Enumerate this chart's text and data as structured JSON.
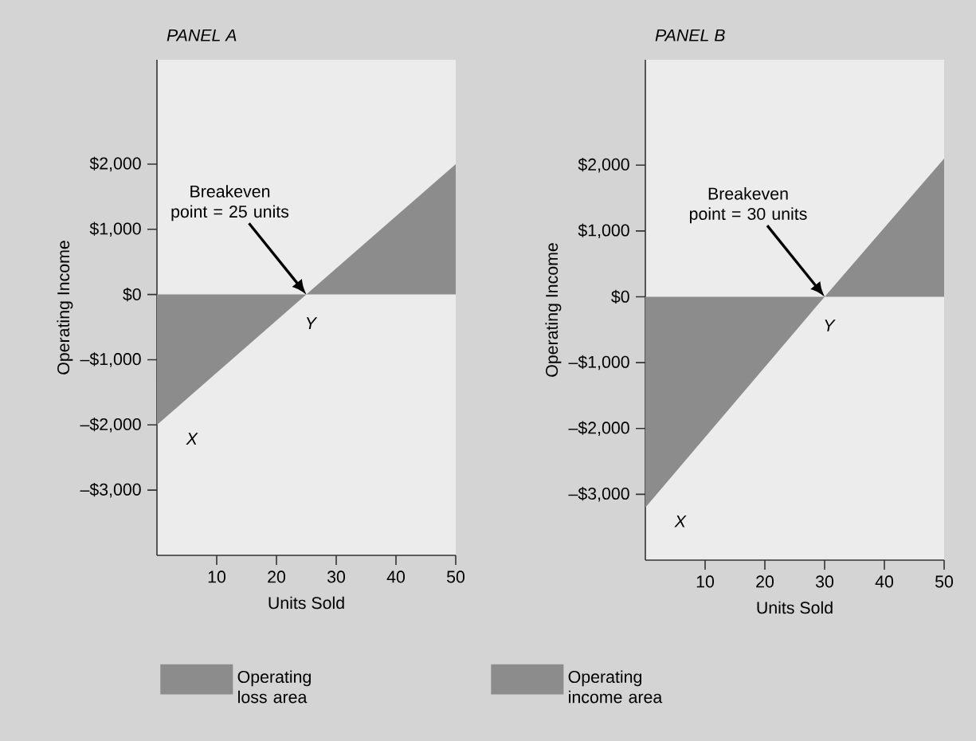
{
  "chart_data": [
    {
      "type": "area",
      "title": "PANEL A",
      "xlabel": "Units Sold",
      "ylabel": "Operating Income",
      "xlim": [
        0,
        50
      ],
      "xticks": [
        10,
        20,
        30,
        40,
        50
      ],
      "ylim": [
        -4000,
        3600
      ],
      "yticks": [
        {
          "value": -3000,
          "label": "–$3,000"
        },
        {
          "value": -2000,
          "label": "–$2,000"
        },
        {
          "value": -1000,
          "label": "–$1,000"
        },
        {
          "value": 0,
          "label": "$0"
        },
        {
          "value": 1000,
          "label": "$1,000"
        },
        {
          "value": 2000,
          "label": "$2,000"
        }
      ],
      "series": [
        {
          "name": "Operating loss area",
          "color": "#8c8c8c",
          "x": [
            0,
            25
          ],
          "values": [
            -2000,
            0
          ]
        },
        {
          "name": "Operating income area",
          "color": "#8c8c8c",
          "x": [
            25,
            50
          ],
          "values": [
            0,
            2000
          ]
        }
      ],
      "annotations": [
        "Breakeven point = 25 units",
        {
          "text": "X",
          "x": 0,
          "y": -2000
        },
        {
          "text": "Y",
          "x": 25,
          "y": 0
        }
      ],
      "legend": "bottom"
    },
    {
      "type": "area",
      "title": "PANEL B",
      "xlabel": "Units Sold",
      "ylabel": "Operating Income",
      "xlim": [
        0,
        50
      ],
      "xticks": [
        10,
        20,
        30,
        40,
        50
      ],
      "ylim": [
        -4000,
        3600
      ],
      "yticks": [
        {
          "value": -3000,
          "label": "–$3,000"
        },
        {
          "value": -2000,
          "label": "–$2,000"
        },
        {
          "value": -1000,
          "label": "–$1,000"
        },
        {
          "value": 0,
          "label": "$0"
        },
        {
          "value": 1000,
          "label": "$1,000"
        },
        {
          "value": 2000,
          "label": "$2,000"
        }
      ],
      "series": [
        {
          "color": "#8c8c8c",
          "x": [
            0,
            30
          ],
          "values": [
            -3200,
            0
          ]
        },
        {
          "color": "#8c8c8c",
          "x": [
            30,
            50
          ],
          "values": [
            0,
            2100
          ]
        }
      ],
      "annotations": [
        "Breakeven point = 30 units",
        {
          "text": "X",
          "x": 0,
          "y": -3200
        },
        {
          "text": "Y",
          "x": 30,
          "y": 0
        }
      ]
    }
  ]
}
